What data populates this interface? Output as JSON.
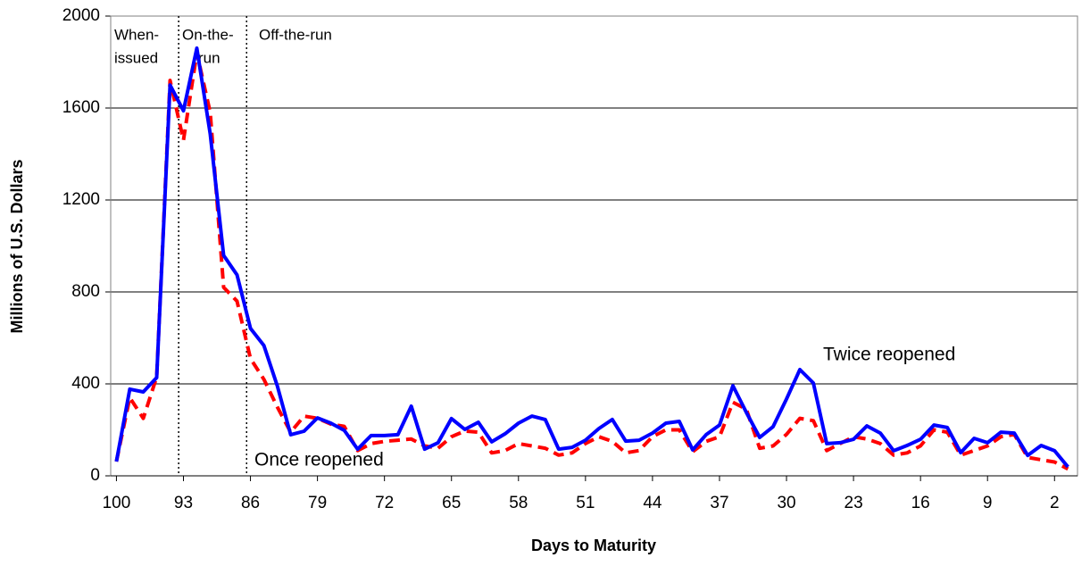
{
  "chart_data": {
    "type": "line",
    "x_label": "Days to Maturity",
    "y_label": "Millions of U.S. Dollars",
    "xlim": [
      100.6,
      -0.4
    ],
    "ylim": [
      0,
      2000
    ],
    "xticks": [
      100,
      93,
      86,
      79,
      72,
      65,
      58,
      51,
      44,
      37,
      30,
      23,
      16,
      9,
      2
    ],
    "yticks": [
      0,
      400,
      800,
      1200,
      1600,
      2000
    ],
    "grid": true,
    "dividers": [
      93.5,
      86.4
    ],
    "region_labels": [
      [
        "When-",
        "issued"
      ],
      [
        "On-the-",
        "run"
      ],
      [
        "Off-the-run"
      ]
    ],
    "x": [
      100,
      98.6,
      97.2,
      95.8,
      94.4,
      93,
      91.6,
      90.2,
      88.8,
      87.4,
      86,
      84.6,
      83.2,
      81.8,
      80.4,
      79,
      77.6,
      76.2,
      74.8,
      73.4,
      72,
      70.6,
      69.2,
      67.8,
      66.4,
      65,
      63.6,
      62.2,
      60.8,
      59.4,
      58,
      56.6,
      55.2,
      53.8,
      52.4,
      51,
      49.6,
      48.2,
      46.8,
      45.4,
      44,
      42.6,
      41.2,
      39.8,
      38.4,
      37,
      35.6,
      34.2,
      32.8,
      31.4,
      30,
      28.6,
      27.2,
      25.8,
      24.4,
      23,
      21.6,
      20.2,
      18.8,
      17.4,
      16,
      14.6,
      13.2,
      11.8,
      10.4,
      9,
      7.6,
      6.2,
      4.8,
      3.4,
      2,
      0.6
    ],
    "series": [
      {
        "name": "Once reopened",
        "color": "#ff0000",
        "dashed": true,
        "values": [
          62,
          340,
          250,
          430,
          1720,
          1460,
          1840,
          1580,
          820,
          760,
          510,
          420,
          300,
          190,
          260,
          250,
          225,
          215,
          110,
          140,
          150,
          155,
          160,
          130,
          120,
          170,
          195,
          190,
          100,
          110,
          140,
          130,
          120,
          90,
          100,
          140,
          170,
          150,
          100,
          110,
          170,
          200,
          200,
          105,
          150,
          170,
          320,
          290,
          120,
          130,
          180,
          250,
          240,
          110,
          140,
          170,
          160,
          140,
          90,
          100,
          130,
          200,
          190,
          90,
          110,
          130,
          170,
          180,
          80,
          70,
          60,
          30
        ]
      },
      {
        "name": "Twice reopened",
        "color": "#0000ff",
        "dashed": false,
        "values": [
          62,
          377,
          365,
          427,
          1700,
          1588,
          1860,
          1487,
          959,
          874,
          641,
          567,
          392,
          179,
          194,
          252,
          229,
          198,
          116,
          175,
          175,
          179,
          303,
          116,
          144,
          249,
          202,
          233,
          148,
          183,
          229,
          260,
          245,
          116,
          124,
          155,
          206,
          245,
          151,
          155,
          186,
          229,
          237,
          113,
          179,
          221,
          392,
          276,
          167,
          214,
          334,
          462,
          404,
          140,
          144,
          159,
          217,
          186,
          109,
          132,
          159,
          221,
          210,
          101,
          163,
          144,
          190,
          186,
          89,
          132,
          109,
          39
        ]
      }
    ]
  }
}
